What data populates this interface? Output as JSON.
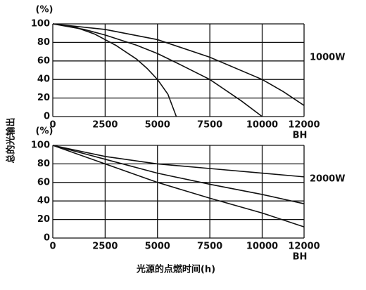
{
  "chart_data": [
    {
      "type": "line",
      "unit": "(%)",
      "x_unit": "BH",
      "annotation": "1000W",
      "ylabel": "总的光输出",
      "xlim": [
        0,
        12000
      ],
      "ylim": [
        0,
        100
      ],
      "xticks": [
        0,
        2500,
        5000,
        7500,
        10000,
        12000
      ],
      "yticks": [
        0,
        20,
        40,
        60,
        80,
        100
      ],
      "series": [
        {
          "color": "#111111",
          "x": [
            0,
            1000,
            2000,
            2500,
            3000,
            4000,
            4500,
            5000,
            5500,
            5900
          ],
          "values": [
            100,
            97,
            89,
            83,
            77,
            62,
            52,
            40,
            24,
            0
          ]
        },
        {
          "color": "#111111",
          "x": [
            0,
            1500,
            2500,
            4000,
            5000,
            6000,
            7500,
            9000,
            10000
          ],
          "values": [
            100,
            94,
            88,
            77,
            68,
            57,
            40,
            17,
            0
          ]
        },
        {
          "color": "#111111",
          "x": [
            0,
            2500,
            5000,
            7500,
            10000,
            11000,
            12000
          ],
          "values": [
            100,
            94,
            83,
            64,
            40,
            27,
            12
          ]
        }
      ]
    },
    {
      "type": "line",
      "unit": "(%)",
      "x_unit": "BH",
      "annotation": "2000W",
      "xlabel": "光源的点燃时间(h)",
      "xlim": [
        0,
        12000
      ],
      "ylim": [
        0,
        100
      ],
      "xticks": [
        0,
        2500,
        5000,
        7500,
        10000,
        12000
      ],
      "yticks": [
        0,
        20,
        40,
        60,
        80,
        100
      ],
      "series": [
        {
          "color": "#111111",
          "x": [
            0,
            2500,
            5000,
            7500,
            10000,
            12000
          ],
          "values": [
            100,
            88,
            80,
            75,
            70,
            66
          ]
        },
        {
          "color": "#111111",
          "x": [
            0,
            2500,
            5000,
            7500,
            10000,
            12000
          ],
          "values": [
            100,
            85,
            70,
            58,
            47,
            37
          ]
        },
        {
          "color": "#111111",
          "x": [
            0,
            2500,
            5000,
            7500,
            10000,
            12000
          ],
          "values": [
            100,
            80,
            60,
            43,
            27,
            12
          ]
        }
      ]
    }
  ]
}
